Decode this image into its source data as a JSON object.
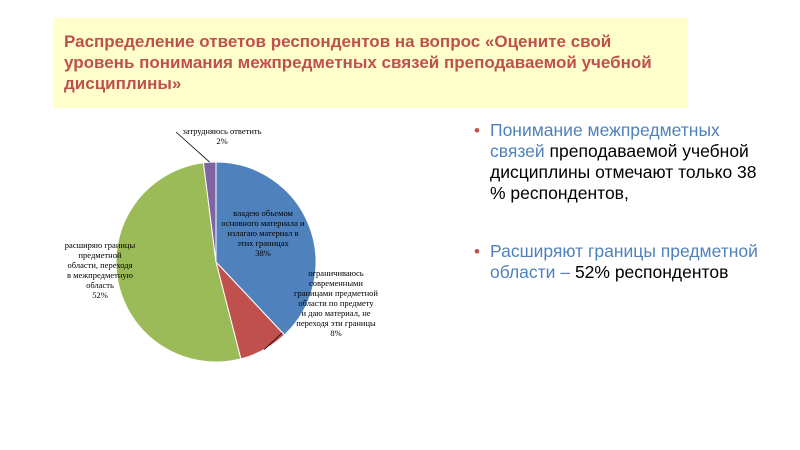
{
  "title": "Распределение ответов респондентов на вопрос «Оцените свой уровень понимания межпредметных связей преподаваемой учебной дисциплины»",
  "chart_data": {
    "type": "pie",
    "slices": [
      {
        "label": "владею объемом основного материала и излагаю материал в этих границах",
        "value": 38,
        "value_label": "38%",
        "color": "#4f81bd"
      },
      {
        "label": "ограничиваюсь современными границами предметной области по предмету и даю материал, не переходя эти границы",
        "value": 8,
        "value_label": "8%",
        "color": "#c0504d"
      },
      {
        "label": "расширяю границы предметной области, переходя в межпредметную область",
        "value": 52,
        "value_label": "52%",
        "color": "#9bbb59"
      },
      {
        "label": "затрудняюсь ответить",
        "value": 2,
        "value_label": "2%",
        "color": "#8064a2"
      }
    ]
  },
  "bullets": [
    {
      "lead": "Понимание межпредметных связей",
      "rest": "преподаваемой учебной дисциплины отмечают только 38 % респондентов,"
    },
    {
      "lead": "Расширяют границы предметной области –",
      "rest": "52% респондентов"
    }
  ]
}
